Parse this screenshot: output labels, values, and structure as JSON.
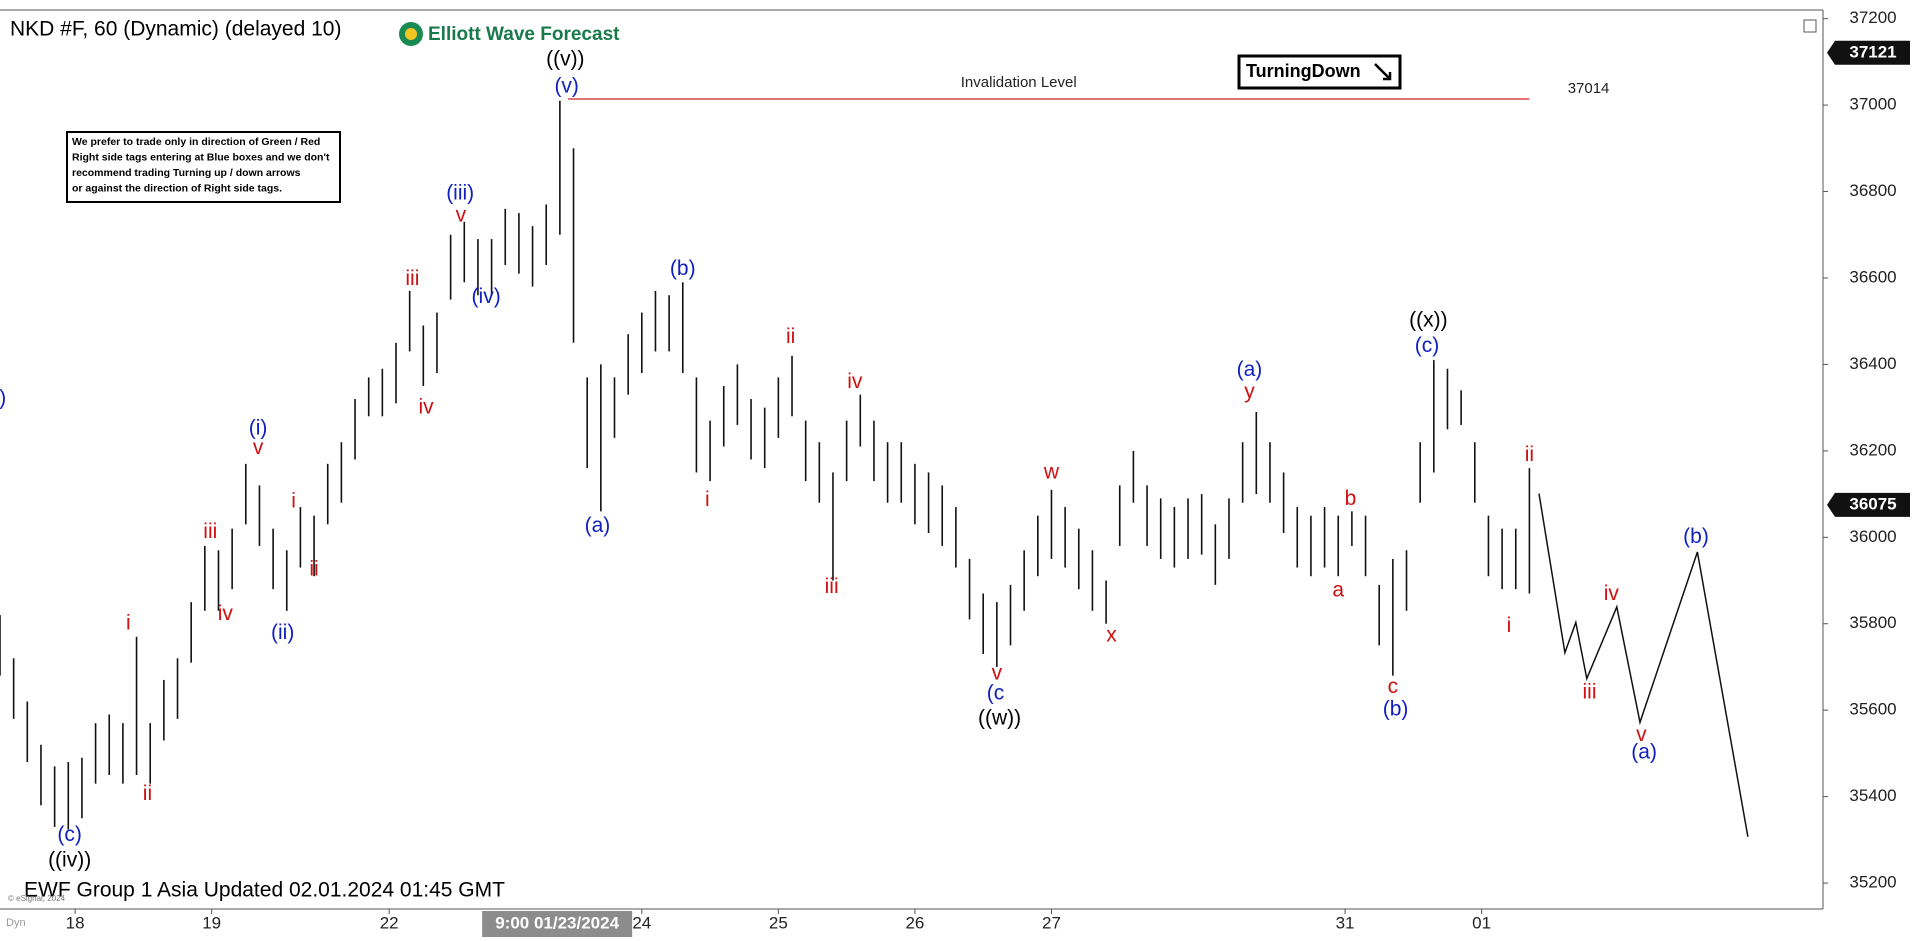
{
  "chart_data": {
    "type": "ohlc",
    "title": "NKD #F, 60 (Dynamic) (delayed 10)",
    "brand": "Elliott Wave Forecast",
    "footer": "EWF Group 1 Asia Updated 02.01.2024 01:45 GMT",
    "copyright": "© eSignal, 2024",
    "corner_label": "Dyn",
    "note": [
      "We prefer to trade only in direction of Green / Red",
      "Right side tags entering at Blue boxes and we don't",
      "recommend trading Turning up / down arrows",
      "or against the direction of Right side tags."
    ],
    "signal": "TurningDown",
    "color": "#111111",
    "xlim": [
      0,
      133.5
    ],
    "ylim": [
      35140,
      37220
    ],
    "yticks": [
      35200,
      35400,
      35600,
      35800,
      36000,
      36200,
      36400,
      36600,
      36800,
      37000,
      37200
    ],
    "xticks": [
      {
        "value": 5.5,
        "label": "18"
      },
      {
        "value": 15.5,
        "label": "19"
      },
      {
        "value": 28.5,
        "label": "22"
      },
      {
        "value": 47,
        "label": "24"
      },
      {
        "value": 57,
        "label": "25"
      },
      {
        "value": 67,
        "label": "26"
      },
      {
        "value": 77,
        "label": "27"
      },
      {
        "value": 98.5,
        "label": "31"
      },
      {
        "value": 108.5,
        "label": "01"
      }
    ],
    "crosshair_x": {
      "value": 40.8,
      "label": "9:00 01/23/2024"
    },
    "price_tags": [
      37121,
      36075
    ],
    "x": [
      0,
      1,
      2,
      3,
      4,
      5,
      6,
      7,
      8,
      9,
      10,
      11,
      12,
      13,
      14,
      15,
      16,
      17,
      18,
      19,
      20,
      21,
      22,
      23,
      24,
      25,
      26,
      27,
      28,
      29,
      30,
      31,
      32,
      33,
      34,
      35,
      36,
      37,
      38,
      39,
      40,
      41,
      42,
      43,
      44,
      45,
      46,
      47,
      48,
      49,
      50,
      51,
      52,
      53,
      54,
      55,
      56,
      57,
      58,
      59,
      60,
      61,
      62,
      63,
      64,
      65,
      66,
      67,
      68,
      69,
      70,
      71,
      72,
      73,
      74,
      75,
      76,
      77,
      78,
      79,
      80,
      81,
      82,
      83,
      84,
      85,
      86,
      87,
      88,
      89,
      90,
      91,
      92,
      93,
      94,
      95,
      96,
      97,
      98,
      99,
      100,
      101,
      102,
      103,
      104,
      105,
      106,
      107,
      108,
      109,
      110,
      111,
      112
    ],
    "high": [
      35820,
      35720,
      35620,
      35520,
      35470,
      35480,
      35490,
      35570,
      35590,
      35570,
      35770,
      35570,
      35670,
      35720,
      35850,
      35980,
      35970,
      36020,
      36170,
      36120,
      36020,
      35970,
      36070,
      36050,
      36170,
      36220,
      36320,
      36370,
      36390,
      36450,
      36570,
      36490,
      36520,
      36700,
      36730,
      36690,
      36690,
      36760,
      36750,
      36720,
      36770,
      37010,
      36900,
      36370,
      36400,
      36370,
      36470,
      36520,
      36570,
      36560,
      36590,
      36370,
      36270,
      36350,
      36400,
      36320,
      36300,
      36370,
      36420,
      36270,
      36220,
      36150,
      36270,
      36330,
      36270,
      36220,
      36220,
      36170,
      36150,
      36120,
      36070,
      35950,
      35870,
      35850,
      35890,
      35970,
      36050,
      36110,
      36070,
      36020,
      35970,
      35900,
      36120,
      36200,
      36120,
      36090,
      36070,
      36090,
      36100,
      36030,
      36090,
      36220,
      36290,
      36220,
      36150,
      36070,
      36050,
      36070,
      36050,
      36060,
      36050,
      35890,
      35950,
      35970,
      36220,
      36410,
      36390,
      36340,
      36220,
      36050,
      36020,
      36020,
      36160
    ],
    "low": [
      35680,
      35580,
      35480,
      35380,
      35330,
      35324,
      35350,
      35430,
      35450,
      35430,
      35450,
      35430,
      35530,
      35580,
      35710,
      35830,
      35830,
      35880,
      36030,
      35980,
      35880,
      35830,
      35930,
      35910,
      36030,
      36080,
      36180,
      36280,
      36280,
      36310,
      36430,
      36350,
      36380,
      36550,
      36590,
      36560,
      36560,
      36630,
      36610,
      36580,
      36630,
      36700,
      36450,
      36160,
      36060,
      36230,
      36330,
      36380,
      36430,
      36430,
      36380,
      36150,
      36130,
      36210,
      36260,
      36180,
      36160,
      36230,
      36280,
      36130,
      36080,
      35900,
      36130,
      36210,
      36130,
      36080,
      36080,
      36030,
      36010,
      35980,
      35930,
      35810,
      35730,
      35700,
      35750,
      35830,
      35910,
      35950,
      35930,
      35880,
      35830,
      35800,
      35980,
      36080,
      35980,
      35950,
      35930,
      35950,
      35960,
      35890,
      35950,
      36080,
      36100,
      36080,
      36010,
      35930,
      35910,
      35930,
      35910,
      35980,
      35910,
      35750,
      35680,
      35830,
      36080,
      36150,
      36250,
      36260,
      36080,
      35910,
      35880,
      35880,
      35870
    ],
    "projection": {
      "x": [
        112.7,
        114.6,
        115.4,
        116.2,
        118.4,
        120.1,
        124.3,
        128
      ],
      "values": [
        36101,
        35733,
        35803,
        35673,
        35839,
        35572,
        35966,
        35307
      ]
    },
    "invalidation": {
      "label": "Invalidation Level",
      "value": 37014,
      "x": [
        41.6,
        112
      ]
    },
    "wave_labels": [
      {
        "color": "#000000",
        "labels": [
          {
            "text": "((v))",
            "x": 41.4,
            "y": 37104
          },
          {
            "text": "((iv))",
            "x": 5.1,
            "y": 35251
          },
          {
            "text": "((w))",
            "x": 73.2,
            "y": 35580
          },
          {
            "text": "((x))",
            "x": 104.6,
            "y": 36501
          }
        ]
      },
      {
        "color": "#1020c0",
        "labels": [
          {
            "text": "(v)",
            "x": 41.5,
            "y": 37042
          },
          {
            "text": "(iii)",
            "x": 33.7,
            "y": 36794
          },
          {
            "text": "(iv)",
            "x": 35.6,
            "y": 36555
          },
          {
            "text": "(i)",
            "x": 18.9,
            "y": 36251
          },
          {
            "text": "(ii)",
            "x": 20.7,
            "y": 35777
          },
          {
            "text": "(c)",
            "x": 5.1,
            "y": 35310
          },
          {
            "text": ")",
            "x": 0.2,
            "y": 36320
          },
          {
            "text": "(a)",
            "x": 43.75,
            "y": 36025
          },
          {
            "text": "(b)",
            "x": 50.0,
            "y": 36620
          },
          {
            "text": "(c",
            "x": 72.9,
            "y": 35637
          },
          {
            "text": "(a)",
            "x": 91.5,
            "y": 36386
          },
          {
            "text": "(b)",
            "x": 102.2,
            "y": 35600
          },
          {
            "text": "(c)",
            "x": 104.5,
            "y": 36442
          },
          {
            "text": "(b)",
            "x": 124.2,
            "y": 36000
          },
          {
            "text": "(a)",
            "x": 120.4,
            "y": 35501
          }
        ]
      },
      {
        "color": "#d01010",
        "labels": [
          {
            "text": "v",
            "x": 33.75,
            "y": 36744
          },
          {
            "text": "iii",
            "x": 30.2,
            "y": 36597
          },
          {
            "text": "iv",
            "x": 31.2,
            "y": 36299
          },
          {
            "text": "v",
            "x": 18.9,
            "y": 36206
          },
          {
            "text": "i",
            "x": 21.5,
            "y": 36082
          },
          {
            "text": "iii",
            "x": 15.4,
            "y": 36011
          },
          {
            "text": "ii",
            "x": 23.0,
            "y": 35924
          },
          {
            "text": "iv",
            "x": 16.5,
            "y": 35822
          },
          {
            "text": "i",
            "x": 9.4,
            "y": 35800
          },
          {
            "text": "ii",
            "x": 10.8,
            "y": 35405
          },
          {
            "text": "i",
            "x": 51.8,
            "y": 36085
          },
          {
            "text": "ii",
            "x": 57.9,
            "y": 36462
          },
          {
            "text": "iv",
            "x": 62.6,
            "y": 36358
          },
          {
            "text": "iii",
            "x": 60.9,
            "y": 35884
          },
          {
            "text": "w",
            "x": 77.0,
            "y": 36149
          },
          {
            "text": "v",
            "x": 73.0,
            "y": 35684
          },
          {
            "text": "x",
            "x": 81.4,
            "y": 35772
          },
          {
            "text": "y",
            "x": 91.5,
            "y": 36335
          },
          {
            "text": "b",
            "x": 98.9,
            "y": 36087
          },
          {
            "text": "a",
            "x": 98.0,
            "y": 35876
          },
          {
            "text": "c",
            "x": 102.0,
            "y": 35653
          },
          {
            "text": "ii",
            "x": 112.0,
            "y": 36189
          },
          {
            "text": "i",
            "x": 110.5,
            "y": 35794
          },
          {
            "text": "iv",
            "x": 118.0,
            "y": 35868
          },
          {
            "text": "iii",
            "x": 116.4,
            "y": 35640
          },
          {
            "text": "v",
            "x": 120.2,
            "y": 35541
          }
        ]
      }
    ]
  }
}
